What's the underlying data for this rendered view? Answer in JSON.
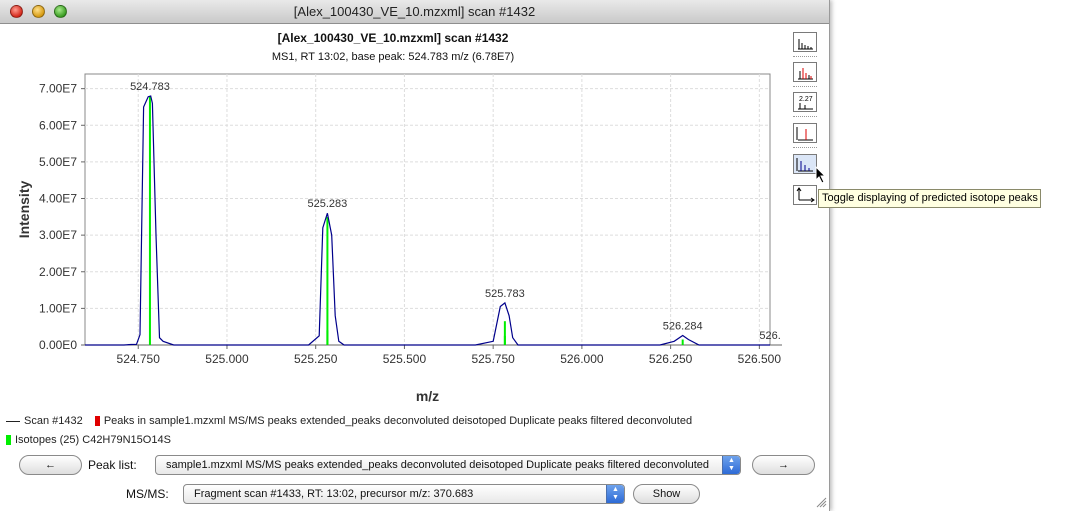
{
  "window": {
    "title": "[Alex_100430_VE_10.mzxml] scan #1432"
  },
  "chart_data": {
    "type": "line",
    "title": "[Alex_100430_VE_10.mzxml] scan #1432",
    "subtitle": "MS1, RT 13:02, base peak: 524.783 m/z (6.78E7)",
    "xlabel": "m/z",
    "ylabel": "Intensity",
    "xlim": [
      524.6,
      526.53
    ],
    "ylim": [
      0,
      74000000.0
    ],
    "x_ticks": [
      524.75,
      525.0,
      525.25,
      525.5,
      525.75,
      526.0,
      526.25,
      526.5
    ],
    "x_tick_labels": [
      "524.750",
      "525.000",
      "525.250",
      "525.500",
      "525.750",
      "526.000",
      "526.250",
      "526.500"
    ],
    "y_ticks": [
      0,
      10000000.0,
      20000000.0,
      30000000.0,
      40000000.0,
      50000000.0,
      60000000.0,
      70000000.0
    ],
    "y_tick_labels": [
      "0.00E0",
      "1.00E7",
      "2.00E7",
      "3.00E7",
      "4.00E7",
      "5.00E7",
      "6.00E7",
      "7.00E7"
    ],
    "grid": true,
    "series": [
      {
        "name": "Scan #1432",
        "color": "#00008b",
        "points": [
          [
            524.6,
            0
          ],
          [
            524.71,
            0
          ],
          [
            524.73,
            150000.0
          ],
          [
            524.745,
            200000.0
          ],
          [
            524.755,
            2800000.0
          ],
          [
            524.765,
            65000000.0
          ],
          [
            524.778,
            67800000.0
          ],
          [
            524.785,
            68000000.0
          ],
          [
            524.79,
            66000000.0
          ],
          [
            524.8,
            30000000.0
          ],
          [
            524.81,
            2000000.0
          ],
          [
            524.82,
            1000000.0
          ],
          [
            524.85,
            0
          ],
          [
            525.23,
            0
          ],
          [
            525.26,
            2500000.0
          ],
          [
            525.27,
            32000000.0
          ],
          [
            525.283,
            36000000.0
          ],
          [
            525.295,
            30000000.0
          ],
          [
            525.305,
            8000000.0
          ],
          [
            525.315,
            1000000.0
          ],
          [
            525.33,
            0
          ],
          [
            525.7,
            0
          ],
          [
            525.75,
            1000000.0
          ],
          [
            525.77,
            10500000.0
          ],
          [
            525.783,
            11500000.0
          ],
          [
            525.795,
            8000000.0
          ],
          [
            525.805,
            2000000.0
          ],
          [
            525.82,
            0
          ],
          [
            526.22,
            0
          ],
          [
            526.26,
            1000000.0
          ],
          [
            526.284,
            2600000.0
          ],
          [
            526.3,
            1500000.0
          ],
          [
            526.33,
            0
          ],
          [
            526.53,
            0
          ]
        ]
      },
      {
        "name": "Isotopes (25) C42H79N15O14S",
        "color": "#00ee00",
        "sticks": [
          [
            524.783,
            68000000.0
          ],
          [
            525.283,
            35000000.0
          ],
          [
            525.283,
            4000000.0
          ],
          [
            525.783,
            6500000.0
          ],
          [
            525.783,
            2500000.0
          ],
          [
            526.284,
            1500000.0
          ]
        ]
      }
    ],
    "peak_labels": [
      {
        "x": 524.783,
        "y": 68000000.0,
        "text": "524.783"
      },
      {
        "x": 525.283,
        "y": 36000000.0,
        "text": "525.283"
      },
      {
        "x": 525.783,
        "y": 11500000.0,
        "text": "525.783"
      },
      {
        "x": 526.284,
        "y": 2600000.0,
        "text": "526.284"
      },
      {
        "x": 526.5,
        "y": 0,
        "text": "526."
      }
    ]
  },
  "toolbar": {
    "buttons": [
      {
        "name": "toggle-continuous-mode-button",
        "icon": "centroid-bars-icon"
      },
      {
        "name": "toggle-peak-list-button",
        "icon": "red-peaks-icon"
      },
      {
        "name": "toggle-annotations-button",
        "icon": "annotation-labels-icon"
      },
      {
        "name": "toggle-picked-peaks-button",
        "icon": "red-peak-icon"
      },
      {
        "name": "toggle-isotope-peaks-button",
        "icon": "isotope-peaks-icon"
      },
      {
        "name": "set-axis-range-button",
        "icon": "axes-icon"
      }
    ],
    "tooltip": "Toggle displaying of predicted isotope peaks"
  },
  "legend": {
    "scan": "Scan #1432",
    "peaks": "Peaks in sample1.mzxml MS/MS peaks extended_peaks deconvoluted deisotoped Duplicate peaks filtered deconvoluted",
    "isotopes": "Isotopes (25) C42H79N15O14S"
  },
  "bottom": {
    "prev_label": "←",
    "next_label": "→",
    "peak_list_label": "Peak list:",
    "peak_list_value": "sample1.mzxml MS/MS peaks extended_peaks deconvoluted deisotoped Duplicate peaks filtered deconvoluted",
    "msms_label": "MS/MS:",
    "msms_value": "Fragment scan #1433, RT: 13:02, precursor m/z: 370.683",
    "show_label": "Show"
  }
}
